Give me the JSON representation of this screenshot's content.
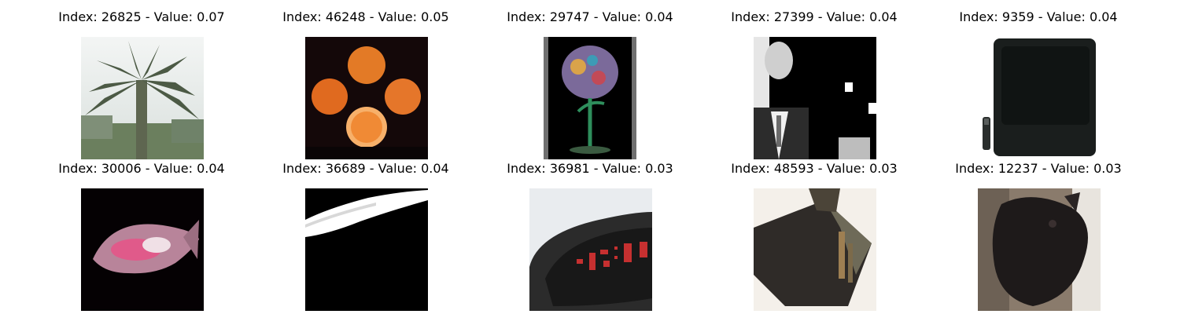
{
  "grid": {
    "items": [
      {
        "title": "Index: 26825 - Value: 0.07",
        "icon": "palm-tree-photo"
      },
      {
        "title": "Index: 46248 - Value: 0.05",
        "icon": "oranges-photo"
      },
      {
        "title": "Index: 29747 - Value: 0.04",
        "icon": "decorated-glass-photo"
      },
      {
        "title": "Index: 27399 - Value: 0.04",
        "icon": "man-in-suit-photo"
      },
      {
        "title": "Index: 9359 - Value: 0.04",
        "icon": "television-photo"
      },
      {
        "title": "Index: 30006 - Value: 0.04",
        "icon": "fish-photo"
      },
      {
        "title": "Index: 36689 - Value: 0.04",
        "icon": "white-streak-photo"
      },
      {
        "title": "Index: 36981 - Value: 0.03",
        "icon": "alarm-clock-photo"
      },
      {
        "title": "Index: 48593 - Value: 0.03",
        "icon": "box-photo"
      },
      {
        "title": "Index: 12237 - Value: 0.03",
        "icon": "dark-animal-photo"
      }
    ]
  }
}
